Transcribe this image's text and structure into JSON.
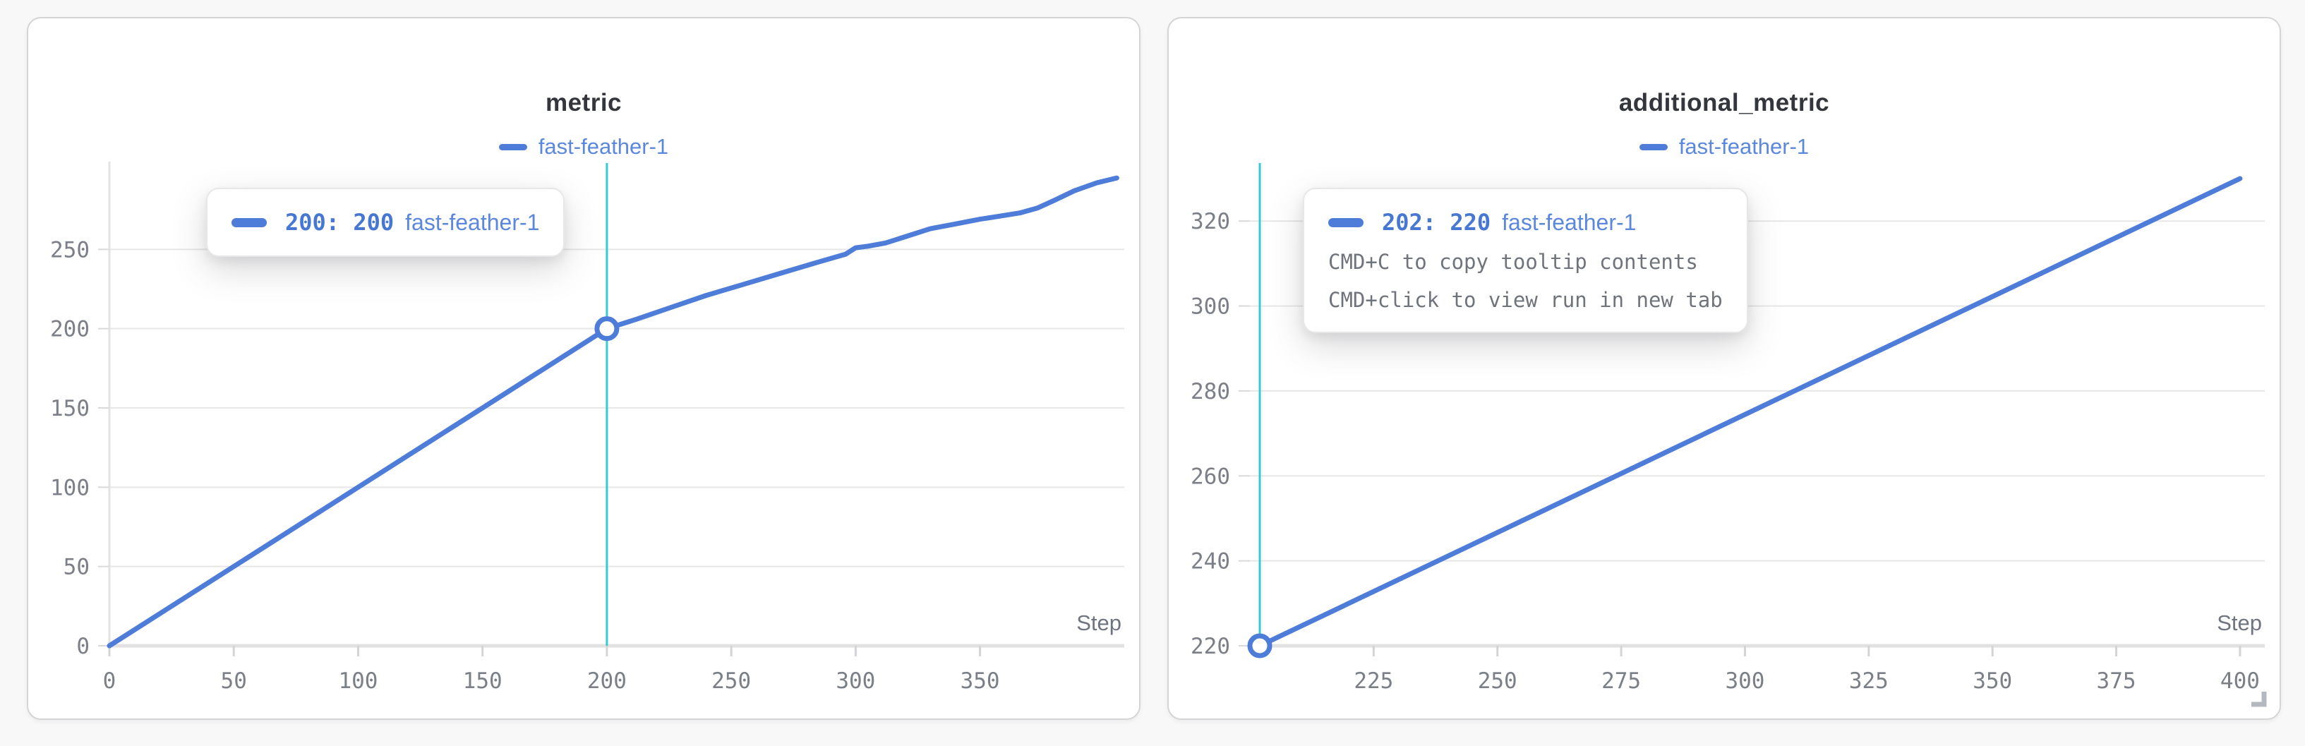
{
  "colors": {
    "run_line_blue": "#4e7cd9",
    "run_text_blue": "#5b87dc",
    "tooltip_value_blue": "#4677d2",
    "crosshair_teal": "#35ccd1",
    "tick_gray": "#7a7f88",
    "title_dark": "#33363c",
    "hint_gray": "#6f747c",
    "gridline": "#e7e7e7",
    "axis_line": "#e2e2e2",
    "card_background": "#ffffff",
    "page_background": "#f8f8f9"
  },
  "chart_data": [
    {
      "type": "line",
      "title": "metric",
      "xlabel": "Step",
      "legend": [
        {
          "label": "fast-feather-1",
          "color": "#4e7cd9"
        }
      ],
      "x_ticks": [
        0,
        50,
        100,
        150,
        200,
        250,
        300,
        350
      ],
      "y_ticks": [
        0,
        50,
        100,
        150,
        200,
        250
      ],
      "xlim": [
        0,
        408
      ],
      "ylim": [
        0,
        300
      ],
      "grid": "horizontal",
      "legend_position": "top-center",
      "y_axis_line": true,
      "series": [
        {
          "name": "fast-feather-1",
          "color": "#4e7cd9",
          "x": [
            0,
            50,
            100,
            150,
            200,
            212,
            225,
            240,
            255,
            270,
            285,
            296,
            300,
            305,
            312,
            320,
            330,
            340,
            350,
            358,
            366,
            373,
            380,
            388,
            397,
            405
          ],
          "y": [
            0,
            50,
            100,
            150,
            200,
            206,
            213,
            221,
            228,
            235,
            242,
            247,
            251,
            252,
            254,
            258,
            263,
            266,
            269,
            271,
            273,
            276,
            281,
            287,
            292,
            295
          ]
        }
      ],
      "crosshair": {
        "x": 200,
        "color": "#35ccd1"
      },
      "marker": {
        "x": 200,
        "y": 200
      },
      "tooltip": {
        "value_label": "200: 200",
        "run": "fast-feather-1",
        "hints": []
      }
    },
    {
      "type": "line",
      "title": "additional_metric",
      "xlabel": "Step",
      "legend": [
        {
          "label": "fast-feather-1",
          "color": "#4e7cd9"
        }
      ],
      "x_ticks": [
        225,
        250,
        275,
        300,
        325,
        350,
        375,
        400
      ],
      "y_ticks": [
        220,
        240,
        260,
        280,
        300,
        320
      ],
      "xlim": [
        200,
        405
      ],
      "ylim": [
        220,
        332
      ],
      "grid": "horizontal",
      "legend_position": "top-center",
      "y_axis_line": false,
      "series": [
        {
          "name": "fast-feather-1",
          "color": "#4e7cd9",
          "x": [
            202,
            400
          ],
          "y": [
            220,
            330
          ]
        }
      ],
      "crosshair": {
        "x": 202,
        "color": "#35ccd1"
      },
      "marker": {
        "x": 202,
        "y": 220
      },
      "tooltip": {
        "value_label": "202: 220",
        "run": "fast-feather-1",
        "hints": [
          "CMD+C to copy tooltip contents",
          "CMD+click to view run in new tab"
        ]
      }
    }
  ]
}
